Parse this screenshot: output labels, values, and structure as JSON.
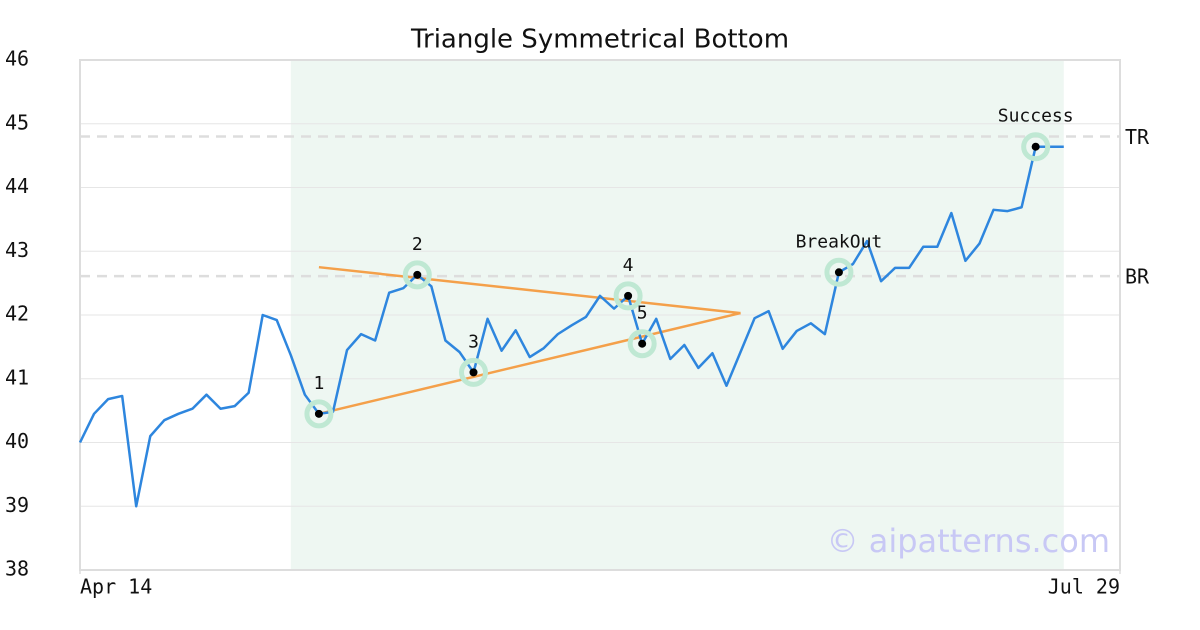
{
  "chart_data": {
    "type": "line",
    "title": "Triangle Symmetrical Bottom",
    "watermark": "© aipatterns.com",
    "color": "#2e86de",
    "x": [
      0,
      1,
      2,
      3,
      4,
      5,
      6,
      7,
      8,
      9,
      10,
      11,
      12,
      13,
      14,
      15,
      16,
      17,
      18,
      19,
      20,
      21,
      22,
      23,
      24,
      25,
      26,
      27,
      28,
      29,
      30,
      31,
      32,
      33,
      34,
      35,
      36,
      37,
      38,
      39,
      40,
      41,
      42,
      43,
      44,
      45,
      46,
      47,
      48,
      49,
      50,
      51,
      52,
      53,
      54,
      55,
      56,
      57,
      58,
      59,
      60,
      61,
      62,
      63,
      64,
      65,
      66,
      67,
      68,
      69,
      70
    ],
    "values": [
      40.0,
      40.45,
      40.68,
      40.73,
      39.0,
      40.1,
      40.35,
      40.45,
      40.53,
      40.75,
      40.53,
      40.57,
      40.78,
      42.0,
      41.92,
      41.37,
      40.75,
      40.45,
      40.48,
      41.45,
      41.7,
      41.6,
      42.35,
      42.42,
      42.63,
      42.45,
      41.6,
      41.42,
      41.1,
      41.94,
      41.44,
      41.76,
      41.34,
      41.48,
      41.7,
      41.84,
      41.97,
      42.3,
      42.1,
      42.3,
      41.55,
      41.94,
      41.31,
      41.53,
      41.17,
      41.4,
      40.89,
      41.42,
      41.95,
      42.06,
      41.47,
      41.75,
      41.87,
      41.7,
      42.67,
      42.8,
      43.16,
      42.53,
      42.74,
      42.74,
      43.07,
      43.07,
      43.6,
      42.85,
      43.12,
      43.65,
      43.63,
      43.69,
      44.64,
      44.64,
      44.64
    ],
    "xlim": [
      0,
      74
    ],
    "xticks": [
      {
        "value": 0,
        "label": "Apr 14"
      },
      {
        "value": 74,
        "label": "Jul 29"
      }
    ],
    "ylim": [
      38,
      46
    ],
    "yticks": [
      38,
      39,
      40,
      41,
      42,
      43,
      44,
      45,
      46
    ],
    "grid": true,
    "highlight": [
      15,
      70
    ],
    "highlight_color": "#eef7f2",
    "hlines": [
      {
        "label": "TR",
        "value": 44.8
      },
      {
        "label": "BR",
        "value": 42.61
      }
    ],
    "trendline_color": "#f4a04a",
    "trendlines": [
      {
        "x": [
          17,
          47
        ],
        "values": [
          42.75,
          42.03
        ]
      },
      {
        "x": [
          17,
          47
        ],
        "values": [
          40.45,
          42.03
        ]
      }
    ],
    "markers": [
      {
        "label": "1",
        "x": 17,
        "value": 40.45
      },
      {
        "label": "2",
        "x": 24,
        "value": 42.63
      },
      {
        "label": "3",
        "x": 28,
        "value": 41.1
      },
      {
        "label": "4",
        "x": 39,
        "value": 42.3
      },
      {
        "label": "5",
        "x": 40,
        "value": 41.55
      },
      {
        "label": "BreakOut",
        "x": 54,
        "value": 42.67
      },
      {
        "label": "Success",
        "x": 68,
        "value": 44.64
      }
    ]
  }
}
